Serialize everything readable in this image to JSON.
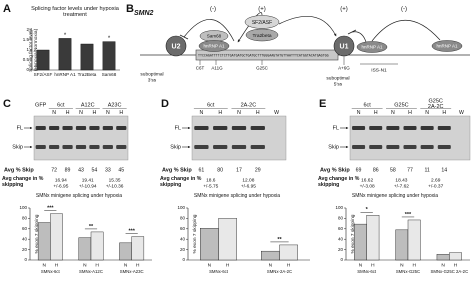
{
  "figure": {
    "panel_labels": [
      "A",
      "B",
      "C",
      "D",
      "E"
    ],
    "diagram": {
      "gene": "SMN2",
      "effects": [
        "(-)",
        "(+)",
        "(+)",
        "(-)"
      ],
      "factors": [
        "U2",
        "hnRNP A1",
        "Sam68",
        "SF2/ASF",
        "Tra2beta",
        "U1",
        "hnRNP A1",
        "hnRNP A1"
      ],
      "sequence": "TTCCAGATTTTCTCTTGATGATGCTGATGCTTTGGGAAGTATGTTAATTTCATGGTACATGAGTGG",
      "mutations": [
        "C6T",
        "A11G",
        "G25C",
        "A+6G"
      ],
      "site_3": [
        "suboptimal",
        "3'ss"
      ],
      "site_5": [
        "suboptimal",
        "5'ss"
      ],
      "element": "ISS-N1"
    },
    "gels": [
      {
        "groups": [
          {
            "label": "GFP"
          },
          {
            "label": "6ct",
            "lanes": [
              "N",
              "H"
            ]
          },
          {
            "label": "A12C",
            "lanes": [
              "N",
              "H"
            ]
          },
          {
            "label": "A23C",
            "lanes": [
              "N",
              "H"
            ]
          }
        ],
        "bands": [
          "FL",
          "Skip"
        ],
        "skip_label": "Avg % Skip",
        "skip": [
          72,
          89,
          43,
          54,
          33,
          45
        ],
        "change_label": "Avg change in % skipping",
        "change": [
          {
            "mean": 16.94,
            "err": "+/-6.95"
          },
          {
            "mean": 19.41,
            "err": "+/-10.94"
          },
          {
            "mean": 15.35,
            "err": "+/-10.36"
          }
        ]
      },
      {
        "groups": [
          {
            "label": "6ct",
            "lanes": [
              "N",
              "H"
            ]
          },
          {
            "label": "2A-2C",
            "lanes": [
              "N",
              "H"
            ]
          },
          {
            "lanes": [
              "W"
            ]
          }
        ],
        "bands": [
          "FL",
          "Skip"
        ],
        "skip_label": "Avg % Skip",
        "skip": [
          61,
          80,
          17,
          29
        ],
        "change_label": "Avg change in % skipping",
        "change": [
          {
            "mean": 18.6,
            "err": "+/-5.75"
          },
          {
            "mean": 12.08,
            "err": "+/-6.95"
          }
        ]
      },
      {
        "groups": [
          {
            "label": "6ct",
            "lanes": [
              "N",
              "H"
            ]
          },
          {
            "label": "G25C",
            "lanes": [
              "N",
              "H"
            ]
          },
          {
            "label": [
              "G25C",
              "2A-2C"
            ],
            "lanes": [
              "N",
              "H"
            ]
          },
          {
            "lanes": [
              "W"
            ]
          }
        ],
        "bands": [
          "FL",
          "Skip"
        ],
        "skip_label": "Avg % Skip",
        "skip": [
          69,
          86,
          58,
          77,
          11,
          14
        ],
        "change_label": "Avg change in % skipping",
        "change": [
          {
            "mean": 16.62,
            "err": "+/-3.08"
          },
          {
            "mean": 18.43,
            "err": "+/-7.62"
          },
          {
            "mean": 2.69,
            "err": "+/-0.37"
          }
        ]
      }
    ]
  },
  "chart_data": [
    {
      "type": "bar",
      "title": "Splicing factor levels under hypoxia treatment",
      "ylabel": "Splicing factor levels (Hypoxia/Normoxia)",
      "categories": [
        "SF2/ASF",
        "hnRNP A1",
        "Tra2Beta",
        "Sam68"
      ],
      "values": [
        1.0,
        1.58,
        1.3,
        1.42
      ],
      "color": "#3a3a3a",
      "significance": [
        null,
        "*",
        null,
        "*"
      ],
      "ylim": [
        0,
        2
      ],
      "yticks": [
        0,
        0.5,
        1,
        1.5,
        2
      ]
    },
    {
      "type": "grouped-bar",
      "title": "SMNx minigene splicing under hypoxia",
      "ylabel": "% exon 7 skipping",
      "categories": [
        "SMNx-6ct",
        "SMNx-A12C",
        "SMNx-A23C"
      ],
      "series": [
        {
          "name": "N",
          "color": "#bdbdbd",
          "values": [
            72,
            43,
            33
          ]
        },
        {
          "name": "H",
          "color": "#e8e8e8",
          "values": [
            89,
            54,
            45
          ]
        }
      ],
      "significance": [
        "***",
        "**",
        "***"
      ],
      "ylim": [
        0,
        100
      ],
      "yticks": [
        0,
        20,
        40,
        60,
        80,
        100
      ]
    },
    {
      "type": "grouped-bar",
      "title": "SMNx minigene splicing under hypoxia",
      "ylabel": "% exon 7 skipping",
      "categories": [
        "SMNx-6ct",
        "SMNx-2A-2C"
      ],
      "series": [
        {
          "name": "N",
          "color": "#bdbdbd",
          "values": [
            61,
            17
          ]
        },
        {
          "name": "H",
          "color": "#e8e8e8",
          "values": [
            80,
            29
          ]
        }
      ],
      "significance": [
        null,
        "**"
      ],
      "ylim": [
        0,
        100
      ],
      "yticks": [
        0,
        20,
        40,
        60,
        80,
        100
      ]
    },
    {
      "type": "grouped-bar",
      "title": "SMNx minigene splicing under hypoxia",
      "ylabel": "% exon 7 skipping",
      "categories": [
        "SMNx-6ct",
        "SMNx-G25C",
        "SMNx-G25C 2A-2C"
      ],
      "series": [
        {
          "name": "N",
          "color": "#bdbdbd",
          "values": [
            69,
            58,
            11
          ]
        },
        {
          "name": "H",
          "color": "#e8e8e8",
          "values": [
            86,
            77,
            14
          ]
        }
      ],
      "significance": [
        "*",
        "***",
        null
      ],
      "ylim": [
        0,
        100
      ],
      "yticks": [
        0,
        20,
        40,
        60,
        80,
        100
      ]
    }
  ]
}
